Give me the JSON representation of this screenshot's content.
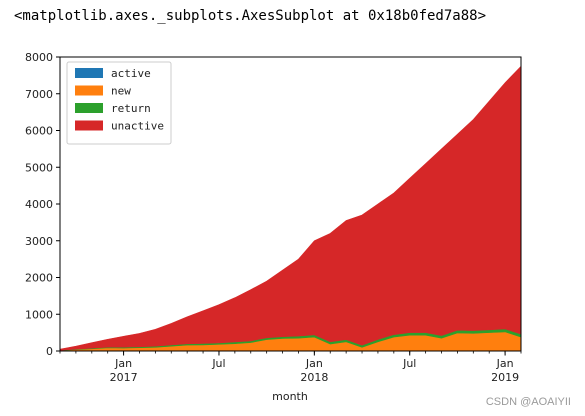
{
  "output_repr": "<matplotlib.axes._subplots.AxesSubplot at 0x18b0fed7a88>",
  "watermark": "CSDN @AOAIYII",
  "chart_data": {
    "type": "area",
    "stacked": true,
    "xlabel": "month",
    "ylabel": "",
    "title": "",
    "x": [
      "2016-09",
      "2016-10",
      "2016-11",
      "2016-12",
      "2017-01",
      "2017-02",
      "2017-03",
      "2017-04",
      "2017-05",
      "2017-06",
      "2017-07",
      "2017-08",
      "2017-09",
      "2017-10",
      "2017-11",
      "2017-12",
      "2018-01",
      "2018-02",
      "2018-03",
      "2018-04",
      "2018-05",
      "2018-06",
      "2018-07",
      "2018-08",
      "2018-09",
      "2018-10",
      "2018-11",
      "2018-12",
      "2019-01",
      "2019-02"
    ],
    "ylim": [
      0,
      8000
    ],
    "yticks": [
      0,
      1000,
      2000,
      3000,
      4000,
      5000,
      6000,
      7000,
      8000
    ],
    "xticks": [
      {
        "x": "2017-01",
        "label": "Jan",
        "sublabel": "2017"
      },
      {
        "x": "2017-07",
        "label": "Jul",
        "sublabel": ""
      },
      {
        "x": "2018-01",
        "label": "Jan",
        "sublabel": "2018"
      },
      {
        "x": "2018-07",
        "label": "Jul",
        "sublabel": ""
      },
      {
        "x": "2019-01",
        "label": "Jan",
        "sublabel": "2019"
      }
    ],
    "legend_position": "top-left",
    "colors": {
      "active": "#1f77b4",
      "new": "#ff7f0e",
      "return": "#2ca02c",
      "unactive": "#d62728"
    },
    "series": [
      {
        "name": "active",
        "values": [
          0,
          0,
          0,
          0,
          0,
          0,
          0,
          0,
          0,
          0,
          0,
          0,
          0,
          0,
          0,
          0,
          0,
          0,
          0,
          0,
          0,
          0,
          0,
          0,
          0,
          0,
          0,
          0,
          0,
          0
        ]
      },
      {
        "name": "new",
        "values": [
          15,
          40,
          60,
          85,
          80,
          90,
          100,
          130,
          160,
          165,
          180,
          200,
          230,
          310,
          340,
          350,
          380,
          190,
          250,
          100,
          250,
          380,
          430,
          430,
          350,
          490,
          480,
          500,
          520,
          380
        ]
      },
      {
        "name": "return",
        "values": [
          5,
          10,
          15,
          20,
          25,
          25,
          30,
          35,
          35,
          40,
          40,
          45,
          45,
          50,
          50,
          55,
          60,
          60,
          60,
          60,
          65,
          65,
          70,
          70,
          70,
          75,
          75,
          75,
          80,
          80
        ]
      },
      {
        "name": "unactive",
        "values": [
          30,
          80,
          150,
          215,
          295,
          365,
          460,
          585,
          735,
          890,
          1040,
          1205,
          1395,
          1540,
          1810,
          2095,
          2560,
          2950,
          3240,
          3540,
          3685,
          3855,
          4200,
          4600,
          5080,
          5335,
          5745,
          6225,
          6700,
          7290
        ]
      }
    ]
  }
}
